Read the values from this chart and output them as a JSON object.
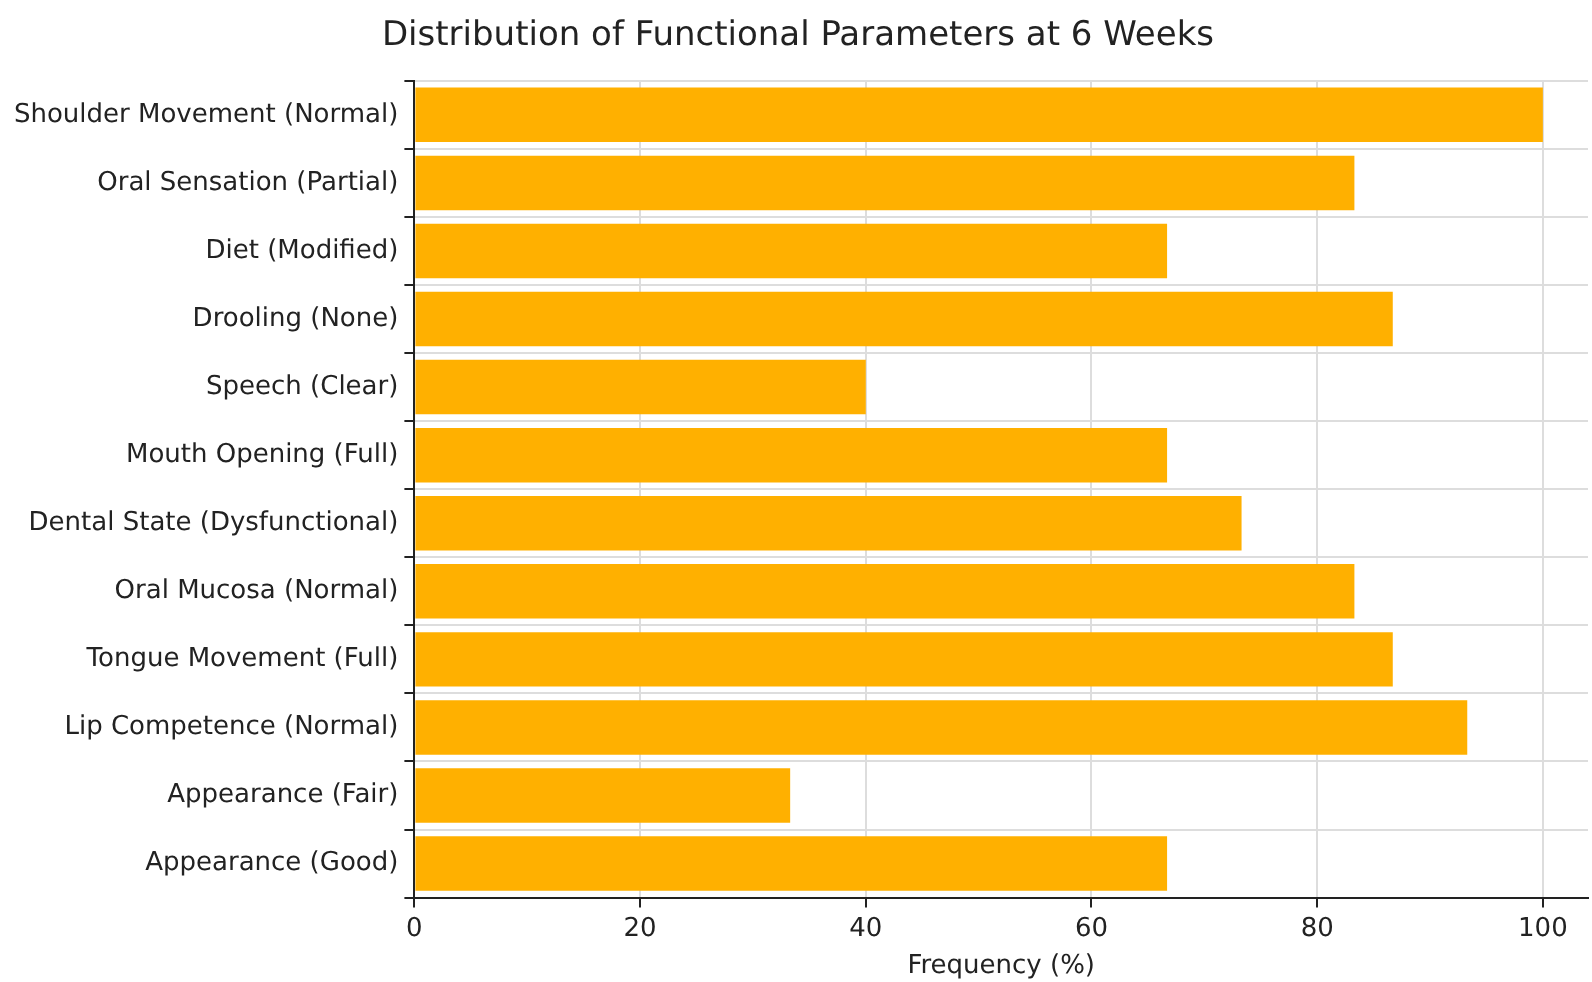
{
  "chart_data": {
    "type": "bar",
    "orientation": "horizontal",
    "title": "Distribution of Functional Parameters at 6 Weeks",
    "xlabel": "Frequency (%)",
    "categories": [
      "Shoulder Movement (Normal)",
      "Oral Sensation (Partial)",
      "Diet (Modified)",
      "Drooling (None)",
      "Speech (Clear)",
      "Mouth Opening (Full)",
      "Dental State (Dysfunctional)",
      "Oral Mucosa (Normal)",
      "Tongue Movement (Full)",
      "Lip Competence (Normal)",
      "Appearance (Fair)",
      "Appearance (Good)"
    ],
    "values": [
      100,
      83.3,
      66.7,
      86.7,
      40,
      66.7,
      73.3,
      83.3,
      86.7,
      93.3,
      33.3,
      66.7
    ],
    "color": "#ffb000",
    "xlim": [
      0,
      104
    ],
    "xticks": [
      0,
      20,
      40,
      60,
      80,
      100
    ],
    "grid": true,
    "legend": false
  }
}
